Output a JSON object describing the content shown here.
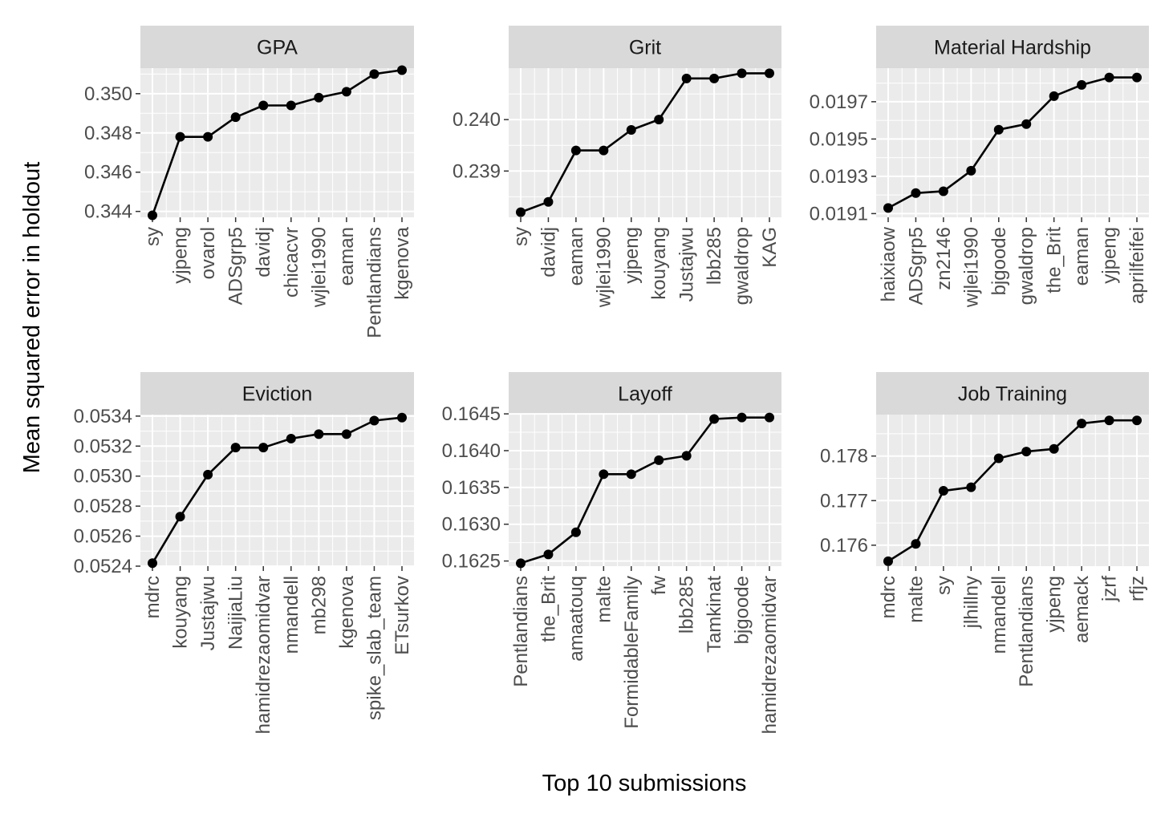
{
  "figure": {
    "xlabel": "Top 10 submissions",
    "ylabel": "Mean squared error in holdout"
  },
  "chart_data": [
    {
      "type": "line",
      "title": "GPA",
      "categories": [
        "sy",
        "yjpeng",
        "ovarol",
        "ADSgrp5",
        "davidj",
        "chicacvr",
        "wjlei1990",
        "eaman",
        "Pentlandians",
        "kgenova"
      ],
      "values": [
        0.3438,
        0.3478,
        0.3478,
        0.3488,
        0.3494,
        0.3494,
        0.3498,
        0.3501,
        0.351,
        0.3512
      ],
      "ylim": [
        0.3437,
        0.3513
      ],
      "yticks": [
        0.344,
        0.346,
        0.348,
        0.35
      ],
      "ytick_labels": [
        "0.344",
        "0.346",
        "0.348",
        "0.350"
      ]
    },
    {
      "type": "line",
      "title": "Grit",
      "categories": [
        "sy",
        "davidj",
        "eaman",
        "wjlei1990",
        "yjpeng",
        "kouyang",
        "Justajwu",
        "lbb285",
        "gwaldrop",
        "KAG"
      ],
      "values": [
        0.2382,
        0.2384,
        0.2394,
        0.2394,
        0.2398,
        0.24,
        0.2408,
        0.2408,
        0.2409,
        0.2409
      ],
      "ylim": [
        0.2381,
        0.241
      ],
      "yticks": [
        0.239,
        0.24
      ],
      "ytick_labels": [
        "0.239",
        "0.240"
      ]
    },
    {
      "type": "line",
      "title": "Material Hardship",
      "categories": [
        "haixiaow",
        "ADSgrp5",
        "zn2146",
        "wjlei1990",
        "bjgoode",
        "gwaldrop",
        "the_Brit",
        "eaman",
        "yjpeng",
        "aprilfeifei"
      ],
      "values": [
        0.01913,
        0.01921,
        0.01922,
        0.01933,
        0.01955,
        0.01958,
        0.01973,
        0.01979,
        0.01983,
        0.01983
      ],
      "ylim": [
        0.01908,
        0.01988
      ],
      "yticks": [
        0.0191,
        0.0193,
        0.0195,
        0.0197
      ],
      "ytick_labels": [
        "0.0191",
        "0.0193",
        "0.0195",
        "0.0197"
      ]
    },
    {
      "type": "line",
      "title": "Eviction",
      "categories": [
        "mdrc",
        "kouyang",
        "Justajwu",
        "NaijiaLiu",
        "hamidrezaomidvar",
        "nmandell",
        "mb298",
        "kgenova",
        "spike_slab_team",
        "ETsurkov"
      ],
      "values": [
        0.05242,
        0.05273,
        0.05301,
        0.05319,
        0.05319,
        0.05325,
        0.05328,
        0.05328,
        0.05337,
        0.05339
      ],
      "ylim": [
        0.0524,
        0.05341
      ],
      "yticks": [
        0.0524,
        0.0526,
        0.0528,
        0.053,
        0.0532,
        0.0534
      ],
      "ytick_labels": [
        "0.0524",
        "0.0526",
        "0.0528",
        "0.0530",
        "0.0532",
        "0.0534"
      ]
    },
    {
      "type": "line",
      "title": "Layoff",
      "categories": [
        "Pentlandians",
        "the_Brit",
        "amaatouq",
        "malte",
        "FormidableFamily",
        "fw",
        "lbb285",
        "Tamkinat",
        "bjgoode",
        "hamidrezaomidvar"
      ],
      "values": [
        0.16247,
        0.16259,
        0.16289,
        0.16368,
        0.16368,
        0.16387,
        0.16393,
        0.16443,
        0.16445,
        0.16445
      ],
      "ylim": [
        0.16243,
        0.16449
      ],
      "yticks": [
        0.1625,
        0.163,
        0.1635,
        0.164,
        0.1645
      ],
      "ytick_labels": [
        "0.1625",
        "0.1630",
        "0.1635",
        "0.1640",
        "0.1645"
      ]
    },
    {
      "type": "line",
      "title": "Job Training",
      "categories": [
        "mdrc",
        "malte",
        "sy",
        "jlhillny",
        "nmandell",
        "Pentlandians",
        "yjpeng",
        "aemack",
        "jzrf",
        "rfjz"
      ],
      "values": [
        0.17564,
        0.17603,
        0.17722,
        0.1773,
        0.17795,
        0.1781,
        0.17816,
        0.17873,
        0.1788,
        0.1788
      ],
      "ylim": [
        0.17553,
        0.17893
      ],
      "yticks": [
        0.176,
        0.177,
        0.178
      ],
      "ytick_labels": [
        "0.176",
        "0.177",
        "0.178"
      ]
    }
  ]
}
